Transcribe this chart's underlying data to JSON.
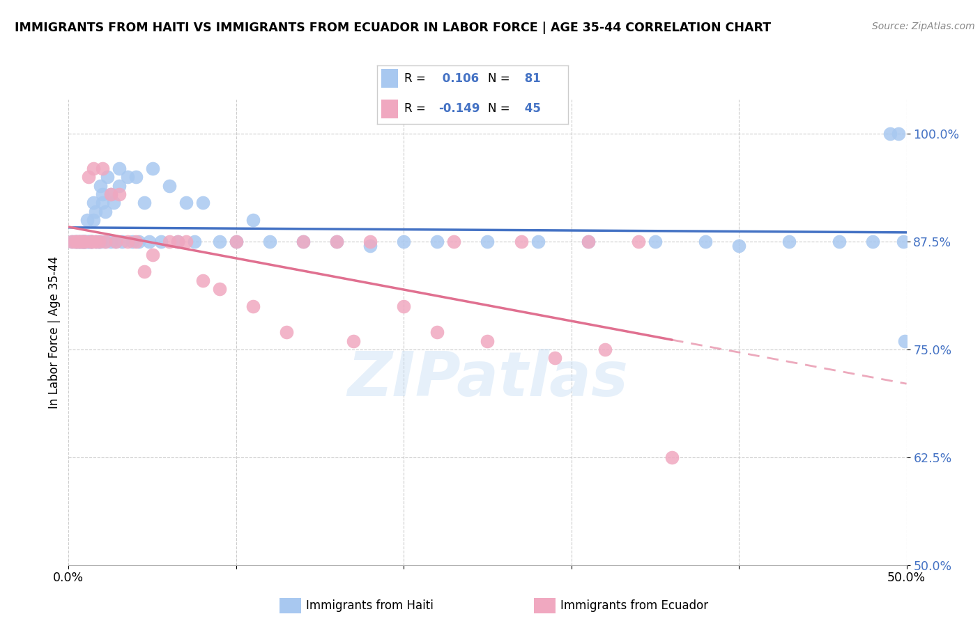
{
  "title": "IMMIGRANTS FROM HAITI VS IMMIGRANTS FROM ECUADOR IN LABOR FORCE | AGE 35-44 CORRELATION CHART",
  "source": "Source: ZipAtlas.com",
  "ylabel": "In Labor Force | Age 35-44",
  "xlim": [
    0.0,
    0.5
  ],
  "ylim": [
    0.5,
    1.04
  ],
  "yticks": [
    0.5,
    0.625,
    0.75,
    0.875,
    1.0
  ],
  "ytick_labels": [
    "50.0%",
    "62.5%",
    "75.0%",
    "87.5%",
    "100.0%"
  ],
  "xticks": [
    0.0,
    0.1,
    0.2,
    0.3,
    0.4,
    0.5
  ],
  "xtick_labels": [
    "0.0%",
    "",
    "",
    "",
    "",
    "50.0%"
  ],
  "haiti_color": "#a8c8f0",
  "ecuador_color": "#f0a8c0",
  "haiti_line_color": "#4472c4",
  "ecuador_line_color": "#e07090",
  "haiti_R": 0.106,
  "haiti_N": 81,
  "ecuador_R": -0.149,
  "ecuador_N": 45,
  "watermark": "ZIPatlas",
  "haiti_scatter_x": [
    0.002,
    0.003,
    0.004,
    0.005,
    0.005,
    0.006,
    0.006,
    0.007,
    0.007,
    0.008,
    0.008,
    0.008,
    0.009,
    0.009,
    0.01,
    0.01,
    0.01,
    0.011,
    0.011,
    0.012,
    0.012,
    0.013,
    0.013,
    0.014,
    0.014,
    0.015,
    0.015,
    0.016,
    0.016,
    0.017,
    0.018,
    0.018,
    0.019,
    0.019,
    0.02,
    0.02,
    0.022,
    0.022,
    0.023,
    0.025,
    0.025,
    0.027,
    0.028,
    0.03,
    0.03,
    0.032,
    0.035,
    0.038,
    0.04,
    0.042,
    0.045,
    0.048,
    0.05,
    0.055,
    0.06,
    0.065,
    0.07,
    0.075,
    0.08,
    0.09,
    0.1,
    0.11,
    0.12,
    0.14,
    0.16,
    0.18,
    0.2,
    0.22,
    0.25,
    0.28,
    0.31,
    0.35,
    0.38,
    0.4,
    0.43,
    0.46,
    0.48,
    0.49,
    0.495,
    0.498,
    0.499
  ],
  "haiti_scatter_y": [
    0.875,
    0.875,
    0.875,
    0.875,
    0.875,
    0.875,
    0.875,
    0.875,
    0.875,
    0.875,
    0.875,
    0.875,
    0.875,
    0.875,
    0.875,
    0.875,
    0.875,
    0.9,
    0.875,
    0.875,
    0.875,
    0.875,
    0.875,
    0.875,
    0.875,
    0.92,
    0.9,
    0.875,
    0.91,
    0.875,
    0.875,
    0.875,
    0.94,
    0.875,
    0.93,
    0.92,
    0.91,
    0.875,
    0.95,
    0.93,
    0.875,
    0.92,
    0.875,
    0.96,
    0.94,
    0.875,
    0.95,
    0.875,
    0.95,
    0.875,
    0.92,
    0.875,
    0.96,
    0.875,
    0.94,
    0.875,
    0.92,
    0.875,
    0.92,
    0.875,
    0.875,
    0.9,
    0.875,
    0.875,
    0.875,
    0.87,
    0.875,
    0.875,
    0.875,
    0.875,
    0.875,
    0.875,
    0.875,
    0.87,
    0.875,
    0.875,
    0.875,
    1.0,
    1.0,
    0.875,
    0.76
  ],
  "ecuador_scatter_x": [
    0.002,
    0.004,
    0.005,
    0.006,
    0.007,
    0.008,
    0.009,
    0.01,
    0.012,
    0.013,
    0.014,
    0.015,
    0.016,
    0.018,
    0.02,
    0.022,
    0.025,
    0.028,
    0.03,
    0.035,
    0.04,
    0.045,
    0.05,
    0.06,
    0.065,
    0.07,
    0.08,
    0.09,
    0.1,
    0.11,
    0.13,
    0.14,
    0.16,
    0.17,
    0.18,
    0.2,
    0.22,
    0.23,
    0.25,
    0.27,
    0.29,
    0.31,
    0.32,
    0.34,
    0.36
  ],
  "ecuador_scatter_y": [
    0.875,
    0.875,
    0.875,
    0.875,
    0.875,
    0.875,
    0.875,
    0.875,
    0.95,
    0.875,
    0.875,
    0.96,
    0.875,
    0.875,
    0.96,
    0.875,
    0.93,
    0.875,
    0.93,
    0.875,
    0.875,
    0.84,
    0.86,
    0.875,
    0.875,
    0.875,
    0.83,
    0.82,
    0.875,
    0.8,
    0.77,
    0.875,
    0.875,
    0.76,
    0.875,
    0.8,
    0.77,
    0.875,
    0.76,
    0.875,
    0.74,
    0.875,
    0.75,
    0.875,
    0.625
  ]
}
